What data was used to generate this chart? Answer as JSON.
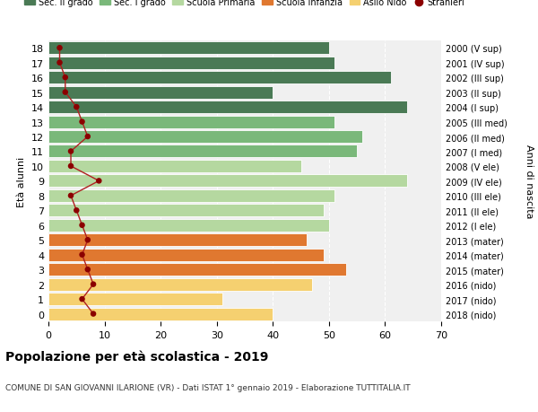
{
  "ages": [
    18,
    17,
    16,
    15,
    14,
    13,
    12,
    11,
    10,
    9,
    8,
    7,
    6,
    5,
    4,
    3,
    2,
    1,
    0
  ],
  "years_by_age": {
    "18": "2000 (V sup)",
    "17": "2001 (IV sup)",
    "16": "2002 (III sup)",
    "15": "2003 (II sup)",
    "14": "2004 (I sup)",
    "13": "2005 (III med)",
    "12": "2006 (II med)",
    "11": "2007 (I med)",
    "10": "2008 (V ele)",
    "9": "2009 (IV ele)",
    "8": "2010 (III ele)",
    "7": "2011 (II ele)",
    "6": "2012 (I ele)",
    "5": "2013 (mater)",
    "4": "2014 (mater)",
    "3": "2015 (mater)",
    "2": "2016 (nido)",
    "1": "2017 (nido)",
    "0": "2018 (nido)"
  },
  "bar_values_by_age": {
    "18": 50,
    "17": 51,
    "16": 61,
    "15": 40,
    "14": 64,
    "13": 51,
    "12": 56,
    "11": 55,
    "10": 45,
    "9": 64,
    "8": 51,
    "7": 49,
    "6": 50,
    "5": 46,
    "4": 49,
    "3": 53,
    "2": 47,
    "1": 31,
    "0": 40
  },
  "bar_colors_by_age": {
    "18": "#4a7a55",
    "17": "#4a7a55",
    "16": "#4a7a55",
    "15": "#4a7a55",
    "14": "#4a7a55",
    "13": "#7ab87a",
    "12": "#7ab87a",
    "11": "#7ab87a",
    "10": "#b5d8a0",
    "9": "#b5d8a0",
    "8": "#b5d8a0",
    "7": "#b5d8a0",
    "6": "#b5d8a0",
    "5": "#e07830",
    "4": "#e07830",
    "3": "#e07830",
    "2": "#f5d070",
    "1": "#f5d070",
    "0": "#f5d070"
  },
  "stranieri_by_age": {
    "18": 2,
    "17": 2,
    "16": 3,
    "15": 3,
    "14": 5,
    "13": 6,
    "12": 7,
    "11": 4,
    "10": 4,
    "9": 9,
    "8": 4,
    "7": 5,
    "6": 6,
    "5": 7,
    "4": 6,
    "3": 7,
    "2": 8,
    "1": 6,
    "0": 8
  },
  "legend_labels": [
    "Sec. II grado",
    "Sec. I grado",
    "Scuola Primaria",
    "Scuola Infanzia",
    "Asilo Nido",
    "Stranieri"
  ],
  "legend_colors": [
    "#4a7a55",
    "#7ab87a",
    "#b5d8a0",
    "#e07830",
    "#f5d070",
    "#b02020"
  ],
  "title": "Popolazione per età scolastica - 2019",
  "subtitle": "COMUNE DI SAN GIOVANNI ILARIONE (VR) - Dati ISTAT 1° gennaio 2019 - Elaborazione TUTTITALIA.IT",
  "ylabel_left": "Età alunni",
  "ylabel_right": "Anni di nascita",
  "xlim": [
    0,
    70
  ],
  "xticks": [
    0,
    10,
    20,
    30,
    40,
    50,
    60,
    70
  ],
  "stranieri_line_color": "#b02020",
  "stranieri_dot_color": "#8b0000"
}
